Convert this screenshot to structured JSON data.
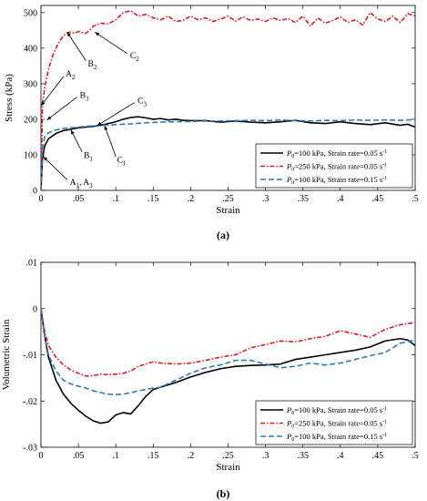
{
  "chart_data": [
    {
      "type": "line",
      "panel_label": "(a)",
      "xlabel": "Strain",
      "ylabel": "Stress (kPa)",
      "xlim": [
        0,
        0.5
      ],
      "ylim": [
        0,
        520
      ],
      "xticks": [
        0,
        0.05,
        0.1,
        0.15,
        0.2,
        0.25,
        0.3,
        0.35,
        0.4,
        0.45,
        0.5
      ],
      "yticks": [
        0,
        100,
        200,
        300,
        400,
        500
      ],
      "legend_position": "bottom-right",
      "series": [
        {
          "name": "P0=100 kPa, Strain rate=0.05 s-1",
          "legend_parts": {
            "sym": "P",
            "sub": "0",
            "mid": "=100 kPa, Strain rate=0.05 s",
            "sup": "-1"
          },
          "color": "#000000",
          "dash": "",
          "x": [
            0,
            0.002,
            0.005,
            0.01,
            0.02,
            0.03,
            0.04,
            0.05,
            0.06,
            0.07,
            0.08,
            0.09,
            0.1,
            0.11,
            0.12,
            0.13,
            0.14,
            0.15,
            0.16,
            0.17,
            0.18,
            0.19,
            0.2,
            0.22,
            0.24,
            0.26,
            0.28,
            0.3,
            0.32,
            0.34,
            0.36,
            0.38,
            0.4,
            0.42,
            0.44,
            0.46,
            0.48,
            0.49,
            0.5
          ],
          "y": [
            0,
            90,
            125,
            145,
            160,
            168,
            172,
            176,
            178,
            180,
            183,
            188,
            193,
            200,
            205,
            207,
            204,
            200,
            202,
            198,
            200,
            197,
            196,
            196,
            192,
            195,
            192,
            190,
            193,
            197,
            190,
            188,
            193,
            188,
            185,
            190,
            183,
            186,
            178
          ]
        },
        {
          "name": "P0=250 kPa, Strain rate=0.05 s-1",
          "legend_parts": {
            "sym": "P",
            "sub": "0",
            "mid": "=250 kPa, Strain rate=0.05 s",
            "sup": "-1"
          },
          "color": "#e8161c",
          "dash": "5,2,1.5,2",
          "x": [
            0,
            0.002,
            0.005,
            0.01,
            0.015,
            0.02,
            0.025,
            0.03,
            0.035,
            0.04,
            0.045,
            0.05,
            0.055,
            0.06,
            0.065,
            0.07,
            0.08,
            0.09,
            0.1,
            0.11,
            0.12,
            0.13,
            0.14,
            0.15,
            0.16,
            0.17,
            0.18,
            0.19,
            0.2,
            0.21,
            0.22,
            0.23,
            0.24,
            0.25,
            0.26,
            0.27,
            0.28,
            0.29,
            0.3,
            0.31,
            0.32,
            0.33,
            0.34,
            0.35,
            0.36,
            0.37,
            0.38,
            0.39,
            0.4,
            0.41,
            0.42,
            0.43,
            0.44,
            0.45,
            0.46,
            0.47,
            0.48,
            0.49,
            0.5
          ],
          "y": [
            0,
            240,
            290,
            340,
            375,
            400,
            420,
            435,
            443,
            445,
            442,
            447,
            444,
            442,
            450,
            462,
            470,
            468,
            480,
            500,
            505,
            490,
            495,
            485,
            480,
            490,
            475,
            478,
            490,
            480,
            485,
            475,
            482,
            490,
            476,
            488,
            478,
            482,
            475,
            485,
            478,
            483,
            472,
            490,
            462,
            485,
            470,
            478,
            488,
            472,
            480,
            465,
            500,
            482,
            475,
            490,
            472,
            497,
            490
          ]
        },
        {
          "name": "P0=100 kPa, Strain rate=0.15 s-1",
          "legend_parts": {
            "sym": "P",
            "sub": "0",
            "mid": "=100 kPa, Strain rate=0.15 s",
            "sup": "-1"
          },
          "color": "#2c7bb6",
          "dash": "6,3",
          "x": [
            0,
            0.002,
            0.005,
            0.01,
            0.02,
            0.03,
            0.04,
            0.05,
            0.06,
            0.08,
            0.1,
            0.12,
            0.14,
            0.16,
            0.18,
            0.2,
            0.22,
            0.24,
            0.26,
            0.28,
            0.3,
            0.32,
            0.34,
            0.36,
            0.38,
            0.4,
            0.42,
            0.44,
            0.46,
            0.48,
            0.5
          ],
          "y": [
            0,
            120,
            150,
            162,
            170,
            174,
            176,
            178,
            180,
            183,
            185,
            187,
            190,
            192,
            193,
            194,
            195,
            195,
            196,
            197,
            196,
            198,
            196,
            195,
            197,
            196,
            198,
            197,
            198,
            197,
            199
          ]
        }
      ],
      "annotations": [
        {
          "label": "A",
          "sub": "2",
          "tail": [
            0.03,
            320
          ],
          "head": [
            0.0,
            238
          ]
        },
        {
          "label": "B",
          "sub": "2",
          "tail": [
            0.06,
            365
          ],
          "head": [
            0.035,
            445
          ]
        },
        {
          "label": "C",
          "sub": "2",
          "tail": [
            0.115,
            385
          ],
          "head": [
            0.072,
            445
          ]
        },
        {
          "label": "B",
          "sub": "3",
          "tail": [
            0.048,
            262
          ],
          "head": [
            0.008,
            198
          ]
        },
        {
          "label": "C",
          "sub": "3",
          "tail": [
            0.125,
            247
          ],
          "head": [
            0.075,
            182
          ]
        },
        {
          "label": "B",
          "sub": "1",
          "tail": [
            0.055,
            108
          ],
          "head": [
            0.04,
            170
          ]
        },
        {
          "label": "C",
          "sub": "1",
          "tail": [
            0.1,
            95
          ],
          "head": [
            0.085,
            182
          ]
        },
        {
          "label": "A",
          "sub": "1",
          "text2": ", A",
          "sub2": "3",
          "tail": [
            0.035,
            30
          ],
          "head": [
            0.003,
            95
          ]
        }
      ]
    },
    {
      "type": "line",
      "panel_label": "(b)",
      "xlabel": "Strain",
      "ylabel": "Volumetric Strain",
      "xlim": [
        0,
        0.5
      ],
      "ylim": [
        -0.03,
        0.01
      ],
      "xticks": [
        0,
        0.05,
        0.1,
        0.15,
        0.2,
        0.25,
        0.3,
        0.35,
        0.4,
        0.45,
        0.5
      ],
      "yticks": [
        -0.03,
        -0.02,
        -0.01,
        0,
        0.01
      ],
      "legend_position": "bottom-right",
      "series": [
        {
          "name": "P0=100 kPa, Strain rate=0.05 s-1",
          "legend_parts": {
            "sym": "P",
            "sub": "0",
            "mid": "=100 kPa, Strain rate=0.05 s",
            "sup": "-1"
          },
          "color": "#000000",
          "dash": "",
          "x": [
            0,
            0.005,
            0.01,
            0.02,
            0.03,
            0.04,
            0.05,
            0.06,
            0.07,
            0.08,
            0.09,
            0.1,
            0.11,
            0.12,
            0.13,
            0.14,
            0.15,
            0.16,
            0.18,
            0.2,
            0.22,
            0.24,
            0.26,
            0.28,
            0.3,
            0.32,
            0.34,
            0.36,
            0.38,
            0.4,
            0.42,
            0.44,
            0.46,
            0.48,
            0.49,
            0.5
          ],
          "y": [
            0,
            -0.006,
            -0.0105,
            -0.0155,
            -0.0185,
            -0.0205,
            -0.022,
            -0.0233,
            -0.0243,
            -0.0248,
            -0.0245,
            -0.023,
            -0.0225,
            -0.0228,
            -0.021,
            -0.019,
            -0.0175,
            -0.017,
            -0.016,
            -0.0148,
            -0.0138,
            -0.013,
            -0.0125,
            -0.0123,
            -0.0122,
            -0.012,
            -0.011,
            -0.0105,
            -0.01,
            -0.0095,
            -0.009,
            -0.0083,
            -0.007,
            -0.0065,
            -0.0068,
            -0.008
          ]
        },
        {
          "name": "P0=250 kPa, Strain rate=0.05 s-1",
          "legend_parts": {
            "sym": "P",
            "sub": "0",
            "mid": "=250 kPa, Strain rate=0.05 s",
            "sup": "-1"
          },
          "color": "#e8161c",
          "dash": "5,2,1.5,2",
          "x": [
            0,
            0.005,
            0.01,
            0.02,
            0.03,
            0.04,
            0.05,
            0.06,
            0.07,
            0.08,
            0.09,
            0.1,
            0.11,
            0.12,
            0.13,
            0.14,
            0.15,
            0.16,
            0.18,
            0.2,
            0.22,
            0.24,
            0.26,
            0.28,
            0.3,
            0.32,
            0.34,
            0.36,
            0.38,
            0.4,
            0.42,
            0.44,
            0.46,
            0.48,
            0.5
          ],
          "y": [
            0,
            -0.005,
            -0.008,
            -0.0105,
            -0.0122,
            -0.0133,
            -0.014,
            -0.0146,
            -0.0145,
            -0.0142,
            -0.0143,
            -0.0142,
            -0.014,
            -0.0135,
            -0.0125,
            -0.012,
            -0.0115,
            -0.0118,
            -0.012,
            -0.0118,
            -0.0112,
            -0.0105,
            -0.01,
            -0.0085,
            -0.0078,
            -0.007,
            -0.0072,
            -0.0065,
            -0.006,
            -0.0048,
            -0.0055,
            -0.0062,
            -0.0045,
            -0.0035,
            -0.003
          ]
        },
        {
          "name": "P0=100 kPa, Strain rate=0.15 s-1",
          "legend_parts": {
            "sym": "P",
            "sub": "0",
            "mid": "=100 kPa, Strain rate=0.15 s",
            "sup": "-1"
          },
          "color": "#2c7bb6",
          "dash": "6,3",
          "x": [
            0,
            0.005,
            0.01,
            0.02,
            0.03,
            0.04,
            0.05,
            0.06,
            0.07,
            0.08,
            0.09,
            0.1,
            0.11,
            0.12,
            0.13,
            0.14,
            0.15,
            0.16,
            0.18,
            0.2,
            0.22,
            0.24,
            0.26,
            0.28,
            0.3,
            0.32,
            0.34,
            0.36,
            0.38,
            0.4,
            0.42,
            0.44,
            0.46,
            0.48,
            0.5
          ],
          "y": [
            0,
            -0.006,
            -0.01,
            -0.0135,
            -0.0155,
            -0.0163,
            -0.0168,
            -0.0172,
            -0.0178,
            -0.0182,
            -0.0185,
            -0.0186,
            -0.0185,
            -0.0182,
            -0.0178,
            -0.0175,
            -0.0172,
            -0.017,
            -0.0155,
            -0.014,
            -0.0128,
            -0.0122,
            -0.0112,
            -0.0112,
            -0.012,
            -0.0128,
            -0.0125,
            -0.0118,
            -0.0122,
            -0.0118,
            -0.011,
            -0.0102,
            -0.0095,
            -0.0075,
            -0.0068
          ]
        }
      ],
      "annotations": []
    }
  ]
}
